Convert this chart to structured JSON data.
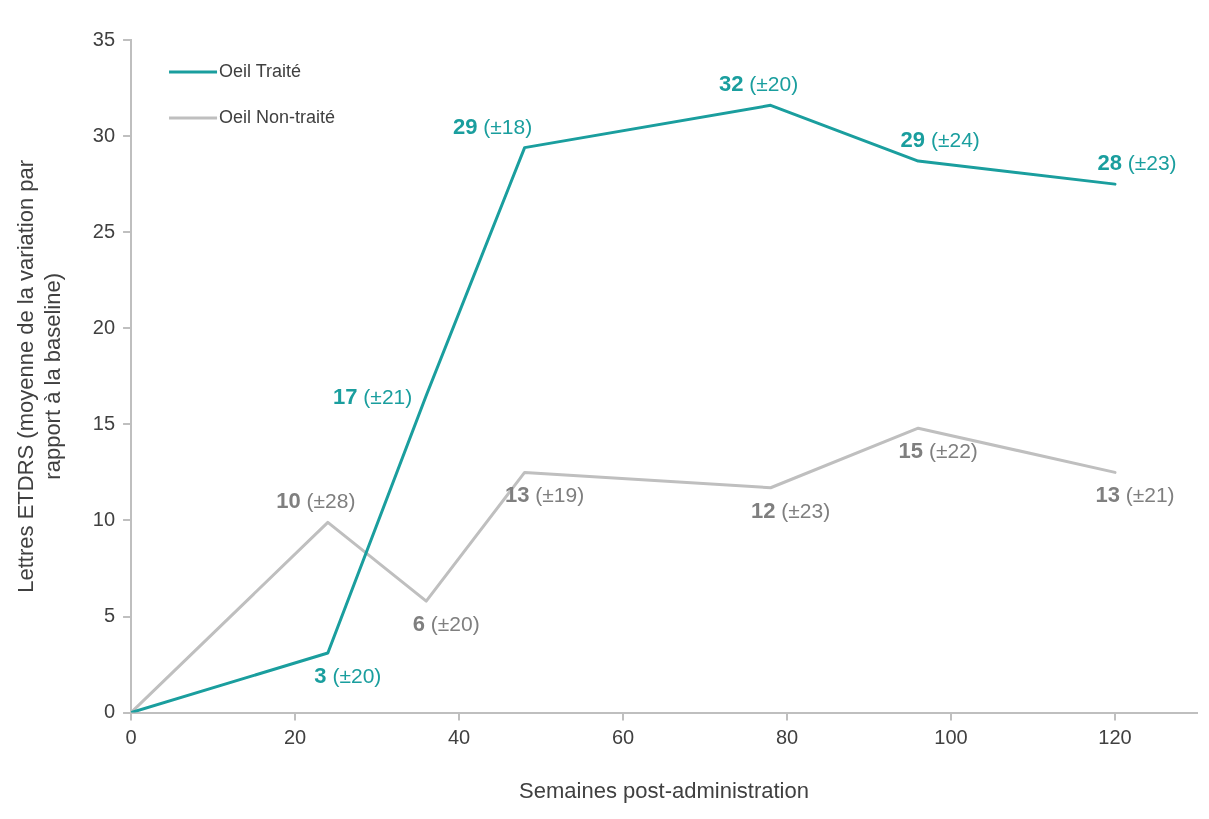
{
  "chart_data": {
    "type": "line",
    "xlabel": "Semaines post-administration",
    "ylabel": "Lettres ETDRS (moyenne de la variation par rapport à la baseline)",
    "x": [
      0,
      24,
      36,
      48,
      78,
      96,
      120
    ],
    "series": [
      {
        "name": "Oeil Traité",
        "color": "#1a9e9e",
        "values": [
          0,
          3.1,
          16.5,
          29.4,
          31.6,
          28.7,
          27.5
        ],
        "value_labels": [
          null,
          "3 (±20)",
          "17 (±21)",
          "29 (±18)",
          "32 (±20)",
          "29 (±24)",
          "28 (±23)"
        ]
      },
      {
        "name": "Oeil Non-traité",
        "color": "#bfbfbf",
        "values": [
          0,
          9.9,
          5.8,
          12.5,
          11.7,
          14.8,
          12.5
        ],
        "value_labels": [
          null,
          "10 (±28)",
          "6 (±20)",
          "13 (±19)",
          "12 (±23)",
          "15 (±22)",
          "13 (±21)"
        ]
      }
    ],
    "xlim": [
      0,
      130
    ],
    "xticks": [
      0,
      20,
      40,
      60,
      80,
      100,
      120
    ],
    "ylim": [
      0,
      35
    ],
    "yticks": [
      0,
      5,
      10,
      15,
      20,
      25,
      30,
      35
    ],
    "grid": false,
    "legend": "top left",
    "marker": "none",
    "line_style": "solid"
  }
}
